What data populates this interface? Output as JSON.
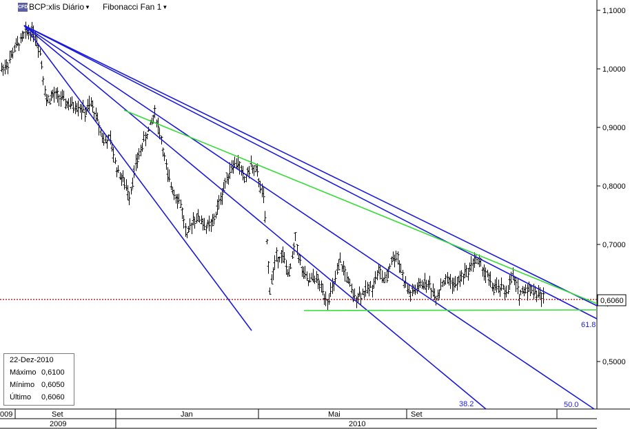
{
  "toolbar": {
    "logo": "CFD",
    "symbol_label": "BCP:xlis Diário",
    "study_label": "Fibonacci Fan 1"
  },
  "infobox": {
    "date": "22-Dez-2010",
    "rows": [
      {
        "label": "Máximo",
        "value": "0,6100"
      },
      {
        "label": "Mínimo",
        "value": "0,6050"
      },
      {
        "label": "Último",
        "value": "0,6060"
      }
    ]
  },
  "chart_data": {
    "type": "line",
    "ylim": [
      0.415,
      1.115
    ],
    "yticks": [
      "1,1000",
      "1,0000",
      "0,9000",
      "0,8000",
      "0,7000",
      "0,6000",
      "0,5000"
    ],
    "last_price": {
      "value": 0.606,
      "label": "0,6060"
    },
    "time_axis": {
      "months": [
        "Set",
        "Jan",
        "Mai",
        "Set"
      ],
      "years": [
        "2009",
        "2010"
      ],
      "partial_left_year": "009"
    },
    "fib_labels": [
      "38.2",
      "50.0",
      "61.8"
    ],
    "colors": {
      "fan": "#1a1adb",
      "channel": "#33dd33",
      "price_line": "#aa0000",
      "bars": "#000000"
    },
    "price_path": [
      [
        0.995,
        1.005
      ],
      [
        1.0,
        1.02
      ],
      [
        1.03,
        1.04
      ],
      [
        1.04,
        1.055
      ],
      [
        1.06,
        1.068
      ],
      [
        1.07,
        1.06
      ],
      [
        1.04,
        1.02
      ],
      [
        0.96,
        0.93
      ],
      [
        0.96,
        0.95
      ],
      [
        0.95,
        0.955
      ],
      [
        0.95,
        0.935
      ],
      [
        0.945,
        0.93
      ],
      [
        0.935,
        0.94
      ],
      [
        0.93,
        0.92
      ],
      [
        0.93,
        0.95
      ],
      [
        0.92,
        0.905
      ],
      [
        0.88,
        0.875
      ],
      [
        0.885,
        0.87
      ],
      [
        0.84,
        0.82
      ],
      [
        0.82,
        0.8
      ],
      [
        0.77,
        0.8
      ],
      [
        0.83,
        0.84
      ],
      [
        0.86,
        0.88
      ],
      [
        0.89,
        0.9
      ],
      [
        0.92,
        0.93
      ],
      [
        0.9,
        0.86
      ],
      [
        0.83,
        0.8
      ],
      [
        0.81,
        0.77
      ],
      [
        0.78,
        0.76
      ],
      [
        0.7,
        0.72
      ],
      [
        0.74,
        0.75
      ],
      [
        0.76,
        0.73
      ],
      [
        0.74,
        0.72
      ],
      [
        0.72,
        0.75
      ],
      [
        0.76,
        0.78
      ],
      [
        0.8,
        0.81
      ],
      [
        0.82,
        0.85
      ],
      [
        0.85,
        0.83
      ],
      [
        0.82,
        0.8
      ],
      [
        0.83,
        0.84
      ],
      [
        0.84,
        0.8
      ],
      [
        0.82,
        0.74
      ],
      [
        0.68,
        0.57
      ],
      [
        0.66,
        0.7
      ],
      [
        0.72,
        0.64
      ],
      [
        0.61,
        0.68
      ],
      [
        0.72,
        0.7
      ],
      [
        0.66,
        0.65
      ],
      [
        0.64,
        0.63
      ],
      [
        0.64,
        0.65
      ],
      [
        0.63,
        0.62
      ],
      [
        0.6,
        0.61
      ],
      [
        0.62,
        0.64
      ],
      [
        0.66,
        0.68
      ],
      [
        0.65,
        0.64
      ],
      [
        0.62,
        0.6
      ],
      [
        0.61,
        0.62
      ],
      [
        0.63,
        0.61
      ],
      [
        0.62,
        0.64
      ],
      [
        0.66,
        0.65
      ],
      [
        0.63,
        0.64
      ],
      [
        0.66,
        0.69
      ],
      [
        0.7,
        0.66
      ],
      [
        0.65,
        0.62
      ],
      [
        0.62,
        0.61
      ],
      [
        0.62,
        0.63
      ],
      [
        0.64,
        0.63
      ],
      [
        0.64,
        0.62
      ],
      [
        0.62,
        0.6
      ],
      [
        0.63,
        0.64
      ],
      [
        0.65,
        0.63
      ],
      [
        0.62,
        0.64
      ],
      [
        0.64,
        0.65
      ],
      [
        0.65,
        0.66
      ],
      [
        0.68,
        0.67
      ],
      [
        0.66,
        0.67
      ],
      [
        0.66,
        0.63
      ],
      [
        0.63,
        0.62
      ],
      [
        0.64,
        0.61
      ],
      [
        0.61,
        0.63
      ],
      [
        0.64,
        0.65
      ],
      [
        0.63,
        0.6
      ],
      [
        0.62,
        0.63
      ],
      [
        0.63,
        0.62
      ],
      [
        0.62,
        0.61
      ],
      [
        0.61,
        0.606
      ]
    ]
  }
}
